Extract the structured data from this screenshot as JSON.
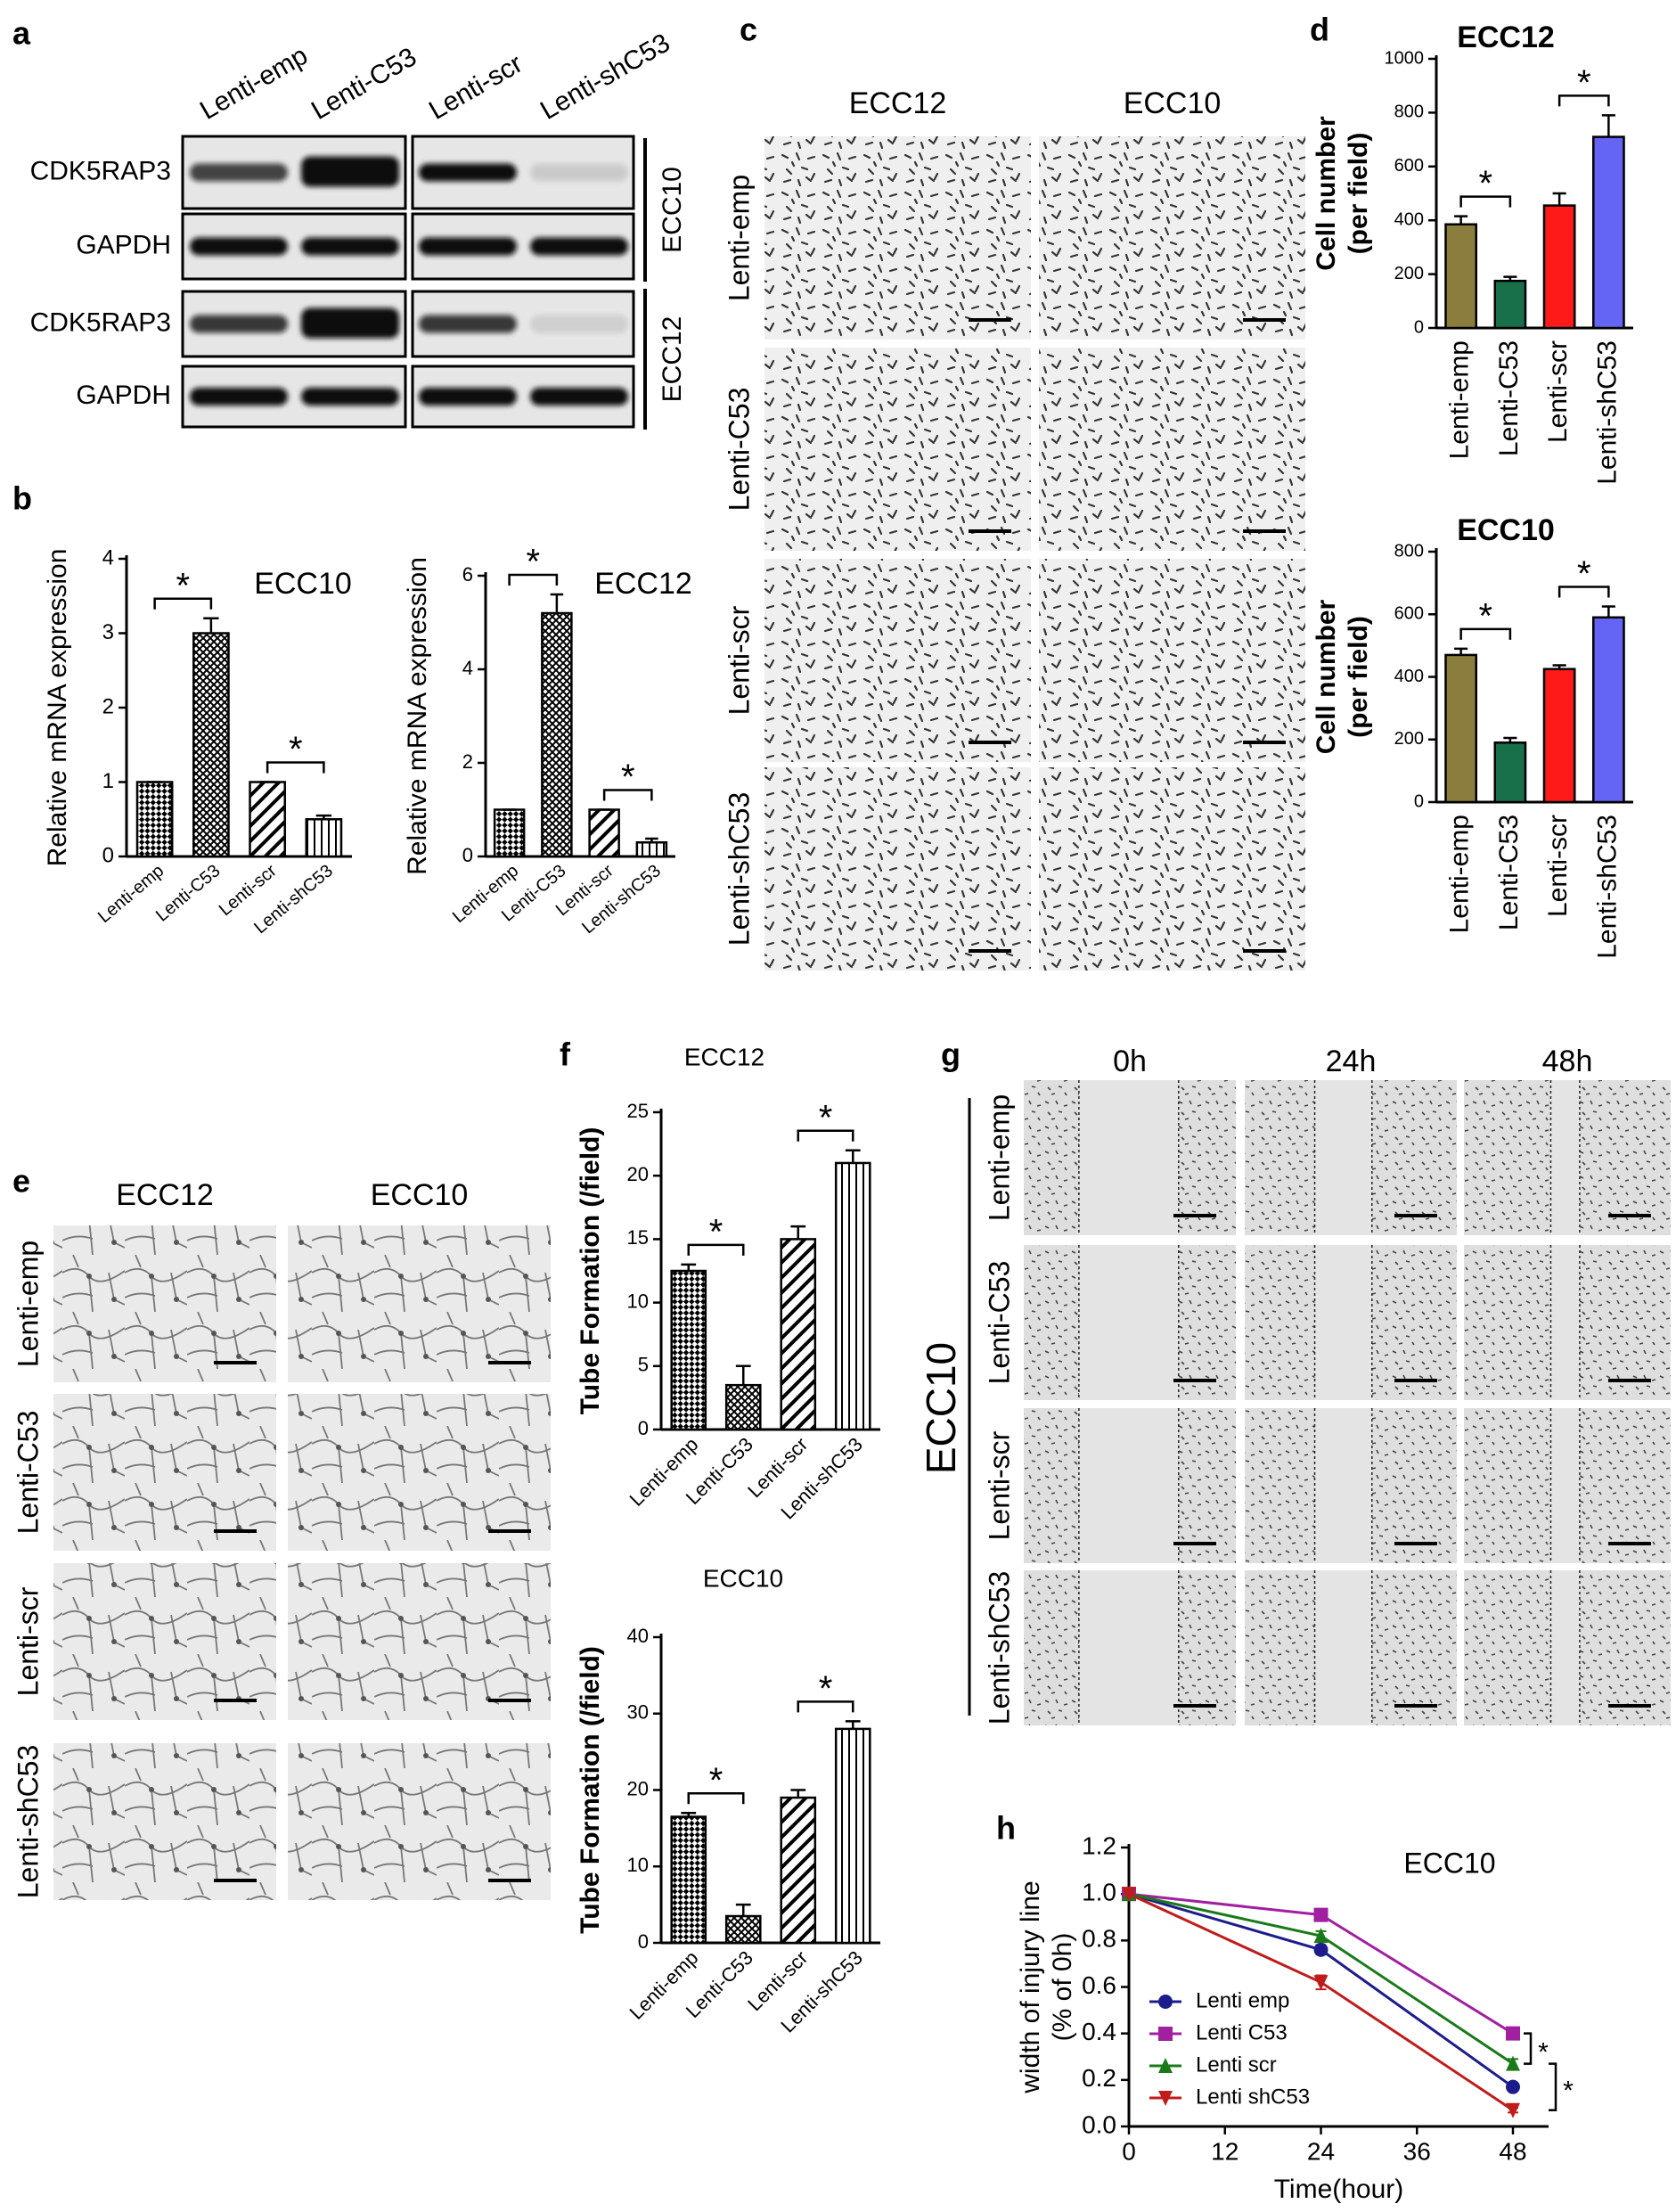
{
  "panel_labels": [
    "a",
    "b",
    "c",
    "d",
    "e",
    "f",
    "g",
    "h"
  ],
  "blot": {
    "lanes": [
      "Lenti-emp",
      "Lenti-C53",
      "Lenti-scr",
      "Lenti-shC53"
    ],
    "rows": [
      "CDK5RAP3",
      "GAPDH",
      "CDK5RAP3",
      "GAPDH"
    ],
    "cell_lines": [
      "ECC10",
      "ECC12"
    ]
  },
  "migration": {
    "columns": [
      "ECC12",
      "ECC10"
    ],
    "rows": [
      "Lenti-emp",
      "Lenti-C53",
      "Lenti-scr",
      "Lenti-shC53"
    ]
  },
  "tube_formation": {
    "columns": [
      "ECC12",
      "ECC10"
    ],
    "rows": [
      "Lenti-emp",
      "Lenti-C53",
      "Lenti-scr",
      "Lenti-shC53"
    ]
  },
  "wound_healing": {
    "columns": [
      "0h",
      "24h",
      "48h"
    ],
    "rows": [
      "Lenti-emp",
      "Lenti-C53",
      "Lenti-scr",
      "Lenti-shC53"
    ],
    "cell_line": "ECC10"
  },
  "chart_data": [
    {
      "type": "bar",
      "title": "ECC10",
      "ylabel": "Relative mRNA expression",
      "categories": [
        "Lenti-emp",
        "Lenti-C53",
        "Lenti-scr",
        "Lenti-shC53"
      ],
      "values": [
        1,
        3.0,
        1,
        0.5
      ],
      "errors": [
        0,
        0.2,
        0,
        0.05
      ],
      "patterns": [
        "checker",
        "crosshatch",
        "diagonal",
        "vertical"
      ],
      "ylim": [
        0,
        4
      ],
      "yticks": [
        0,
        1,
        2,
        3,
        4
      ],
      "significance_labels": [
        "*",
        "*"
      ]
    },
    {
      "type": "bar",
      "title": "ECC12",
      "ylabel": "Relative mRNA expression",
      "categories": [
        "Lenti-emp",
        "Lenti-C53",
        "Lenti-scr",
        "Lenti-shC53"
      ],
      "values": [
        1,
        5.2,
        1,
        0.3
      ],
      "errors": [
        0,
        0.4,
        0,
        0.08
      ],
      "patterns": [
        "checker",
        "crosshatch",
        "diagonal",
        "vertical"
      ],
      "ylim": [
        0,
        6
      ],
      "yticks": [
        0,
        2,
        4,
        6
      ],
      "significance_labels": [
        "*",
        "*"
      ]
    },
    {
      "type": "bar",
      "title": "ECC12",
      "ylabel": [
        "Cell number",
        "(per field)"
      ],
      "categories": [
        "Lenti-emp",
        "Lenti-C53",
        "Lenti-scr",
        "Lenti-shC53"
      ],
      "values": [
        385,
        175,
        455,
        710
      ],
      "errors": [
        30,
        15,
        45,
        80
      ],
      "colors": [
        "#8b7d3e",
        "#17704a",
        "#ff1a1a",
        "#6464f5"
      ],
      "ylim": [
        0,
        1000
      ],
      "yticks": [
        0,
        200,
        400,
        600,
        800,
        1000
      ],
      "significance_labels": [
        "*",
        "*"
      ]
    },
    {
      "type": "bar",
      "title": "ECC10",
      "ylabel": [
        "Cell number",
        "(per field)"
      ],
      "categories": [
        "Lenti-emp",
        "Lenti-C53",
        "Lenti-scr",
        "Lenti-shC53"
      ],
      "values": [
        470,
        190,
        425,
        590
      ],
      "errors": [
        20,
        15,
        12,
        35
      ],
      "colors": [
        "#8b7d3e",
        "#17704a",
        "#ff1a1a",
        "#6464f5"
      ],
      "ylim": [
        0,
        800
      ],
      "yticks": [
        0,
        200,
        400,
        600,
        800
      ],
      "significance_labels": [
        "*",
        "*"
      ]
    },
    {
      "type": "bar",
      "title": "ECC12",
      "ylabel": "Tube Formation (/field)",
      "categories": [
        "Lenti-emp",
        "Lenti-C53",
        "Lenti-scr",
        "Lenti-shC53"
      ],
      "values": [
        12.5,
        3.5,
        15,
        21
      ],
      "errors": [
        0.5,
        1.5,
        1,
        1
      ],
      "patterns": [
        "checker",
        "crosshatch",
        "diagonal",
        "vertical"
      ],
      "ylim": [
        0,
        25
      ],
      "yticks": [
        0,
        5,
        10,
        15,
        20,
        25
      ],
      "significance_labels": [
        "*",
        "*"
      ]
    },
    {
      "type": "bar",
      "title": "ECC10",
      "ylabel": "Tube Formation (/field)",
      "categories": [
        "Lenti-emp",
        "Lenti-C53",
        "Lenti-scr",
        "Lenti-shC53"
      ],
      "values": [
        16.5,
        3.5,
        19,
        28
      ],
      "errors": [
        0.5,
        1.5,
        1,
        1
      ],
      "patterns": [
        "checker",
        "crosshatch",
        "diagonal",
        "vertical"
      ],
      "ylim": [
        0,
        40
      ],
      "yticks": [
        0,
        10,
        20,
        30,
        40
      ],
      "significance_labels": [
        "*",
        "*"
      ]
    },
    {
      "type": "line",
      "title": "ECC10",
      "xlabel": "Time(hour)",
      "ylabel": [
        "width of injury line",
        "(% of 0h)"
      ],
      "x": [
        0,
        24,
        48
      ],
      "xlim": [
        0,
        48
      ],
      "xticks": [
        0,
        12,
        24,
        36,
        48
      ],
      "ylim": [
        0,
        1.2
      ],
      "yticks": [
        {
          "value": 0,
          "label": "0.0"
        },
        0.2,
        0.4,
        0.6,
        0.8,
        {
          "value": 1,
          "label": "1.0"
        },
        1.2
      ],
      "series": [
        {
          "name": "Lenti emp",
          "color": "#1c1c8c",
          "marker": "circle",
          "values": [
            1,
            0.76,
            0.17
          ],
          "errors": [
            0,
            0.02,
            0.01
          ]
        },
        {
          "name": "Lenti C53",
          "color": "#a020a0",
          "marker": "square",
          "values": [
            1,
            0.91,
            0.4
          ],
          "errors": [
            0,
            0.01,
            0.01
          ]
        },
        {
          "name": "Lenti scr",
          "color": "#1a7a1a",
          "marker": "triangle-up",
          "values": [
            1,
            0.82,
            0.27
          ],
          "errors": [
            0,
            0.02,
            0.02
          ]
        },
        {
          "name": "Lenti shC53",
          "color": "#c01c1c",
          "marker": "triangle-down",
          "values": [
            1,
            0.62,
            0.07
          ],
          "errors": [
            0,
            0.03,
            0.01
          ]
        }
      ],
      "significance_labels": [
        "*",
        "*"
      ]
    }
  ]
}
